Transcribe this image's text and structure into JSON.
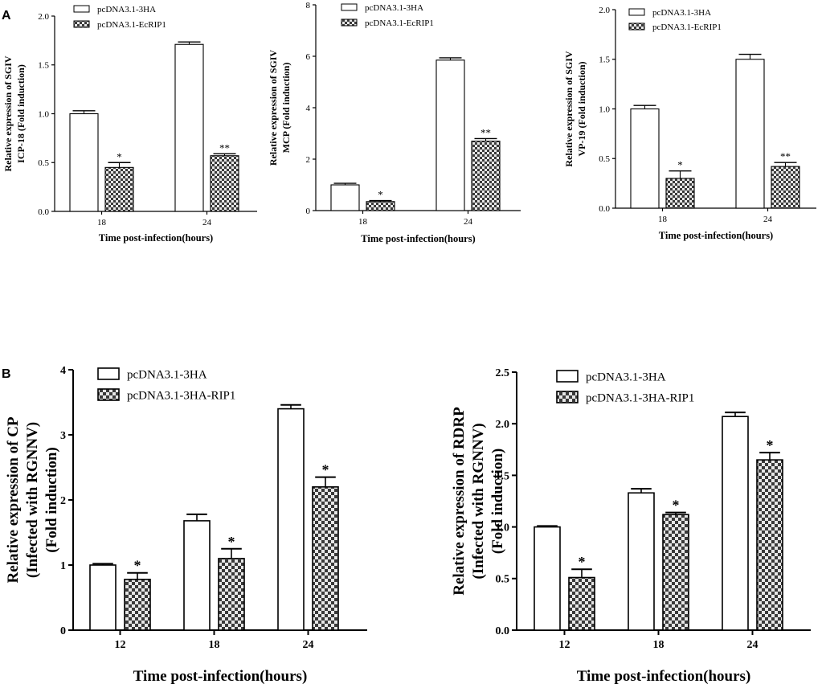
{
  "figure": {
    "panel_a_label": "A",
    "panel_b_label": "B"
  },
  "chart_data": [
    {
      "type": "bar",
      "panel": "A",
      "ylabel_lines": [
        "Relative expression of SGIV",
        "ICP-18 (Fold induction)"
      ],
      "xlabel": "Time post-infection(hours)",
      "categories": [
        "18",
        "24"
      ],
      "ylim": [
        0,
        2.0
      ],
      "yticks": [
        "0.0",
        "0.5",
        "1.0",
        "1.5",
        "2.0"
      ],
      "series": [
        {
          "name": "pcDNA3.1-3HA",
          "values": [
            1.0,
            1.71
          ],
          "errors": [
            0.03,
            0.025
          ]
        },
        {
          "name": "pcDNA3.1-EcRIP1",
          "values": [
            0.45,
            0.57
          ],
          "errors": [
            0.05,
            0.02
          ]
        }
      ],
      "annotations": [
        {
          "category": "18",
          "series": 1,
          "text": "*"
        },
        {
          "category": "24",
          "series": 1,
          "text": "**"
        }
      ]
    },
    {
      "type": "bar",
      "panel": "A",
      "ylabel_lines": [
        "Relative expression of SGIV",
        "MCP (Fold induction)"
      ],
      "xlabel": "Time post-infection(hours)",
      "categories": [
        "18",
        "24"
      ],
      "ylim": [
        0,
        8
      ],
      "yticks": [
        "0",
        "2",
        "4",
        "6",
        "8"
      ],
      "series": [
        {
          "name": "pcDNA3.1-3HA",
          "values": [
            1.0,
            5.85
          ],
          "errors": [
            0.06,
            0.09
          ]
        },
        {
          "name": "pcDNA3.1-EcRIP1",
          "values": [
            0.35,
            2.7
          ],
          "errors": [
            0.04,
            0.1
          ]
        }
      ],
      "annotations": [
        {
          "category": "18",
          "series": 1,
          "text": "*"
        },
        {
          "category": "24",
          "series": 1,
          "text": "**"
        }
      ]
    },
    {
      "type": "bar",
      "panel": "A",
      "ylabel_lines": [
        "Relative expression of SGIV",
        "VP-19 (Fold induction)"
      ],
      "xlabel": "Time post-infection(hours)",
      "categories": [
        "18",
        "24"
      ],
      "ylim": [
        0,
        2.0
      ],
      "yticks": [
        "0.0",
        "0.5",
        "1.0",
        "1.5",
        "2.0"
      ],
      "series": [
        {
          "name": "pcDNA3.1-3HA",
          "values": [
            1.0,
            1.5
          ],
          "errors": [
            0.035,
            0.05
          ]
        },
        {
          "name": "pcDNA3.1-EcRIP1",
          "values": [
            0.3,
            0.42
          ],
          "errors": [
            0.075,
            0.04
          ]
        }
      ],
      "annotations": [
        {
          "category": "18",
          "series": 1,
          "text": "*"
        },
        {
          "category": "24",
          "series": 1,
          "text": "**"
        }
      ]
    },
    {
      "type": "bar",
      "panel": "B",
      "ylabel_lines": [
        "Relative expression of CP",
        "(Infected with RGNNV)",
        "(Fold induction)"
      ],
      "xlabel": "Time post-infection(hours)",
      "categories": [
        "12",
        "18",
        "24"
      ],
      "ylim": [
        0,
        4
      ],
      "yticks": [
        "0",
        "1",
        "2",
        "3",
        "4"
      ],
      "series": [
        {
          "name": "pcDNA3.1-3HA",
          "values": [
            1.0,
            1.68,
            3.4
          ],
          "errors": [
            0.02,
            0.1,
            0.06
          ]
        },
        {
          "name": "pcDNA3.1-3HA-RIP1",
          "values": [
            0.78,
            1.1,
            2.2
          ],
          "errors": [
            0.1,
            0.15,
            0.15
          ]
        }
      ],
      "annotations": [
        {
          "category": "12",
          "series": 1,
          "text": "*"
        },
        {
          "category": "18",
          "series": 1,
          "text": "*"
        },
        {
          "category": "24",
          "series": 1,
          "text": "*"
        }
      ]
    },
    {
      "type": "bar",
      "panel": "B",
      "ylabel_lines": [
        "Relative expression of RDRP",
        "(Infected with RGNNV)",
        "(Fold induction)"
      ],
      "xlabel": "Time post-infection(hours)",
      "categories": [
        "12",
        "18",
        "24"
      ],
      "ylim": [
        0,
        2.5
      ],
      "yticks": [
        "0.0",
        "0.5",
        "1.0",
        "1.5",
        "2.0",
        "2.5"
      ],
      "series": [
        {
          "name": "pcDNA3.1-3HA",
          "values": [
            1.0,
            1.33,
            2.07
          ],
          "errors": [
            0.01,
            0.04,
            0.04
          ]
        },
        {
          "name": "pcDNA3.1-3HA-RIP1",
          "values": [
            0.51,
            1.12,
            1.65
          ],
          "errors": [
            0.08,
            0.02,
            0.07
          ]
        }
      ],
      "annotations": [
        {
          "category": "12",
          "series": 1,
          "text": "*"
        },
        {
          "category": "18",
          "series": 1,
          "text": "*"
        },
        {
          "category": "24",
          "series": 1,
          "text": "*"
        }
      ]
    }
  ]
}
